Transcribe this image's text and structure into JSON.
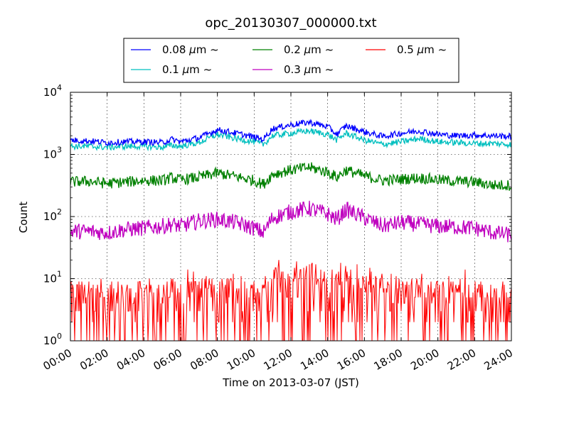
{
  "chart_data": {
    "type": "line",
    "title": "opc_20130307_000000.txt",
    "xlabel": "Time on 2013-03-07 (JST)",
    "ylabel": "Count",
    "yscale": "log",
    "ylim": [
      1,
      10000
    ],
    "xlim": [
      "00:00",
      "24:00"
    ],
    "xticks": [
      "00:00",
      "02:00",
      "04:00",
      "06:00",
      "08:00",
      "10:00",
      "12:00",
      "14:00",
      "16:00",
      "18:00",
      "20:00",
      "22:00",
      "24:00"
    ],
    "yticks": [
      {
        "value": 1,
        "base": "10",
        "exp": "0"
      },
      {
        "value": 10,
        "base": "10",
        "exp": "1"
      },
      {
        "value": 100,
        "base": "10",
        "exp": "2"
      },
      {
        "value": 1000,
        "base": "10",
        "exp": "3"
      },
      {
        "value": 10000,
        "base": "10",
        "exp": "4"
      }
    ],
    "grid": true,
    "legend_placement": "top-center, above plot",
    "x": [
      "00:00",
      "01:00",
      "02:00",
      "03:00",
      "04:00",
      "05:00",
      "05:30",
      "06:00",
      "07:00",
      "08:00",
      "09:00",
      "10:00",
      "10:30",
      "11:00",
      "12:00",
      "13:00",
      "14:00",
      "14:30",
      "15:00",
      "16:00",
      "17:00",
      "18:00",
      "19:00",
      "20:00",
      "21:00",
      "22:00",
      "23:00",
      "24:00"
    ],
    "series": [
      {
        "name": "0.08 μm ~",
        "color": "#0000ff",
        "values": [
          1700,
          1650,
          1550,
          1600,
          1600,
          1550,
          1750,
          1600,
          1850,
          2500,
          2200,
          1900,
          1750,
          2600,
          3000,
          3300,
          2800,
          2100,
          2900,
          2300,
          1950,
          2200,
          2400,
          2100,
          2000,
          2050,
          2000,
          1950
        ]
      },
      {
        "name": "0.1 μm ~",
        "color": "#00bfbf",
        "values": [
          1350,
          1350,
          1300,
          1350,
          1350,
          1300,
          1400,
          1350,
          1550,
          2100,
          1800,
          1600,
          1450,
          2000,
          2200,
          2400,
          2100,
          1700,
          2200,
          1700,
          1450,
          1600,
          1800,
          1600,
          1550,
          1500,
          1500,
          1450
        ]
      },
      {
        "name": "0.2 μm ~",
        "color": "#008000",
        "values": [
          360,
          370,
          340,
          360,
          380,
          380,
          420,
          390,
          430,
          500,
          440,
          380,
          330,
          480,
          560,
          620,
          520,
          430,
          560,
          450,
          380,
          400,
          420,
          390,
          370,
          360,
          320,
          320
        ]
      },
      {
        "name": "0.3 μm ~",
        "color": "#bf00bf",
        "values": [
          58,
          58,
          55,
          62,
          65,
          70,
          75,
          70,
          85,
          90,
          80,
          65,
          55,
          95,
          120,
          135,
          110,
          90,
          130,
          95,
          70,
          80,
          75,
          70,
          68,
          65,
          55,
          50
        ]
      },
      {
        "name": "0.5 μm ~",
        "color": "#ff0000",
        "values": [
          4.5,
          4.5,
          4.5,
          4.6,
          4.8,
          4.8,
          5,
          5,
          5.2,
          5.5,
          5.2,
          4.8,
          4.8,
          7.5,
          8.5,
          9,
          8,
          6.5,
          8.5,
          6,
          5,
          5,
          5,
          4.8,
          4.8,
          4.6,
          4.5,
          4.5
        ]
      }
    ],
    "legend_entries": [
      {
        "base": "0.08 ",
        "mu": "μ",
        "unit": "m",
        "tilde": "~",
        "color": "#0000ff"
      },
      {
        "base": "0.1 ",
        "mu": "μ",
        "unit": "m",
        "tilde": "~",
        "color": "#00bfbf"
      },
      {
        "base": "0.2 ",
        "mu": "μ",
        "unit": "m",
        "tilde": "~",
        "color": "#008000"
      },
      {
        "base": "0.3 ",
        "mu": "μ",
        "unit": "m",
        "tilde": "~",
        "color": "#bf00bf"
      },
      {
        "base": "0.5 ",
        "mu": "μ",
        "unit": "m",
        "tilde": "~",
        "color": "#ff0000"
      }
    ]
  }
}
